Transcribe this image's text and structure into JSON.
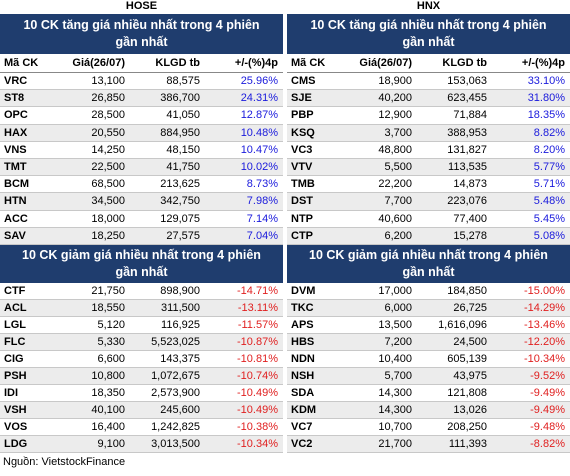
{
  "panels": [
    {
      "exchange": "HOSE",
      "gainers": {
        "title": "10 CK tăng giá nhiều nhất trong 4 phiên gần nhất",
        "columns": [
          "Mã CK",
          "Giá(26/07)",
          "KLGD tb",
          "+/-(%)4p"
        ],
        "rows": [
          [
            "VRC",
            "13,100",
            "88,575",
            "25.96%"
          ],
          [
            "ST8",
            "26,850",
            "386,700",
            "24.31%"
          ],
          [
            "OPC",
            "28,500",
            "41,050",
            "12.87%"
          ],
          [
            "HAX",
            "20,550",
            "884,950",
            "10.48%"
          ],
          [
            "VNS",
            "14,250",
            "48,150",
            "10.47%"
          ],
          [
            "TMT",
            "22,500",
            "41,750",
            "10.02%"
          ],
          [
            "BCM",
            "68,500",
            "213,625",
            "8.73%"
          ],
          [
            "HTN",
            "34,500",
            "342,750",
            "7.98%"
          ],
          [
            "ACC",
            "18,000",
            "129,075",
            "7.14%"
          ],
          [
            "SAV",
            "18,250",
            "27,575",
            "7.04%"
          ]
        ]
      },
      "losers": {
        "title": "10 CK giảm giá nhiều nhất trong 4 phiên gần nhất",
        "rows": [
          [
            "CTF",
            "21,750",
            "898,900",
            "-14.71%"
          ],
          [
            "ACL",
            "18,550",
            "311,500",
            "-13.11%"
          ],
          [
            "LGL",
            "5,120",
            "116,925",
            "-11.57%"
          ],
          [
            "FLC",
            "5,330",
            "5,523,025",
            "-10.87%"
          ],
          [
            "CIG",
            "6,600",
            "143,375",
            "-10.81%"
          ],
          [
            "PSH",
            "10,800",
            "1,072,675",
            "-10.74%"
          ],
          [
            "IDI",
            "18,350",
            "2,573,900",
            "-10.49%"
          ],
          [
            "VSH",
            "40,100",
            "245,600",
            "-10.49%"
          ],
          [
            "VOS",
            "16,400",
            "1,242,825",
            "-10.38%"
          ],
          [
            "LDG",
            "9,100",
            "3,013,500",
            "-10.34%"
          ]
        ]
      }
    },
    {
      "exchange": "HNX",
      "gainers": {
        "title": "10 CK tăng giá nhiều nhất trong 4 phiên gần nhất",
        "columns": [
          "Mã CK",
          "Giá(26/07)",
          "KLGD tb",
          "+/-(%)4p"
        ],
        "rows": [
          [
            "CMS",
            "18,900",
            "153,063",
            "33.10%"
          ],
          [
            "SJE",
            "40,200",
            "623,455",
            "31.80%"
          ],
          [
            "PBP",
            "12,900",
            "71,884",
            "18.35%"
          ],
          [
            "KSQ",
            "3,700",
            "388,953",
            "8.82%"
          ],
          [
            "VC3",
            "48,800",
            "131,827",
            "8.20%"
          ],
          [
            "VTV",
            "5,500",
            "113,535",
            "5.77%"
          ],
          [
            "TMB",
            "22,200",
            "14,873",
            "5.71%"
          ],
          [
            "DST",
            "7,700",
            "223,076",
            "5.48%"
          ],
          [
            "NTP",
            "40,600",
            "77,400",
            "5.45%"
          ],
          [
            "CTP",
            "6,200",
            "15,278",
            "5.08%"
          ]
        ]
      },
      "losers": {
        "title": "10 CK giảm giá nhiều nhất trong 4 phiên gần nhất",
        "rows": [
          [
            "DVM",
            "17,000",
            "184,850",
            "-15.00%"
          ],
          [
            "TKC",
            "6,000",
            "26,725",
            "-14.29%"
          ],
          [
            "APS",
            "13,500",
            "1,616,096",
            "-13.46%"
          ],
          [
            "HBS",
            "7,200",
            "24,500",
            "-12.20%"
          ],
          [
            "NDN",
            "10,400",
            "605,139",
            "-10.34%"
          ],
          [
            "NSH",
            "5,700",
            "43,975",
            "-9.52%"
          ],
          [
            "SDA",
            "14,300",
            "121,808",
            "-9.49%"
          ],
          [
            "KDM",
            "14,300",
            "13,026",
            "-9.49%"
          ],
          [
            "VC7",
            "10,700",
            "208,250",
            "-9.48%"
          ],
          [
            "VC2",
            "21,700",
            "111,393",
            "-8.82%"
          ]
        ]
      }
    }
  ],
  "source": "Nguồn: VietstockFinance"
}
